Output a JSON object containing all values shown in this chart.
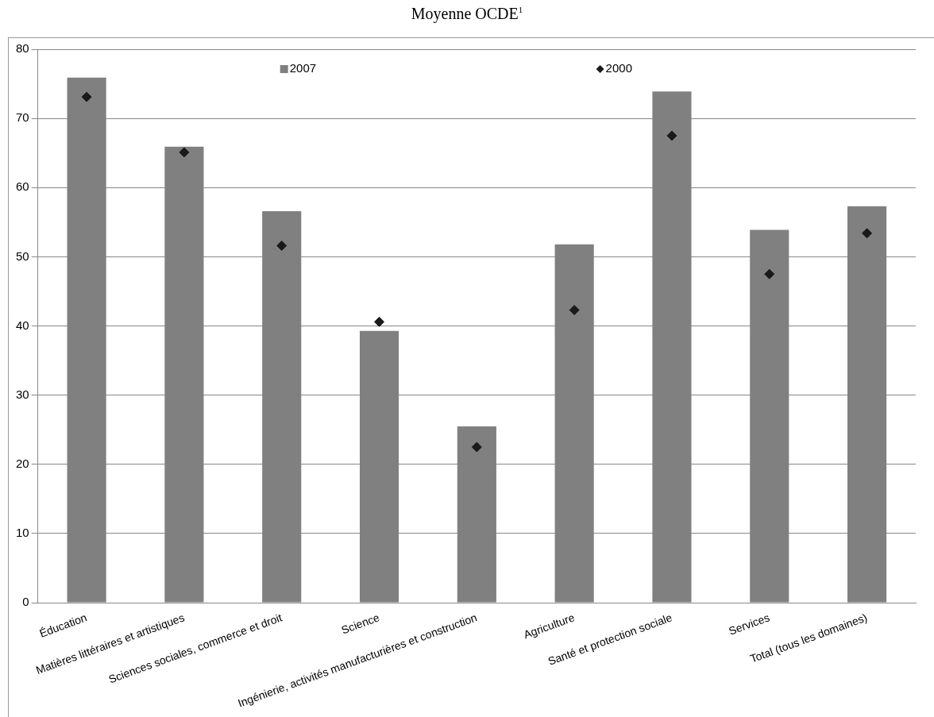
{
  "chart_data": {
    "type": "bar",
    "title": "Moyenne OCDE$^{1}$",
    "categories": [
      "Éducation",
      "Matières littéraires et artistiques",
      "Sciences sociales, commerce et droit",
      "Science",
      "Ingénierie, activités manufacturières et construction",
      "Agriculture",
      "Santé et protection sociale",
      "Services",
      "Total (tous les domaines)"
    ],
    "series": [
      {
        "name": "2007",
        "color": "#808080",
        "values": [
          75.9,
          65.9,
          56.6,
          39.3,
          25.5,
          51.8,
          73.9,
          53.9,
          57.3
        ]
      },
      {
        "name": "2000",
        "type": "scatter",
        "color": "#1a1a1a",
        "values": [
          73.1,
          65.1,
          51.6,
          40.6,
          22.5,
          42.3,
          67.5,
          47.5,
          53.4
        ]
      }
    ],
    "ylim": [
      0,
      80
    ],
    "yticks": [
      0,
      10,
      20,
      30,
      40,
      50,
      60,
      70,
      80
    ],
    "grid": "y",
    "legend": "top",
    "marker": "diamond"
  }
}
